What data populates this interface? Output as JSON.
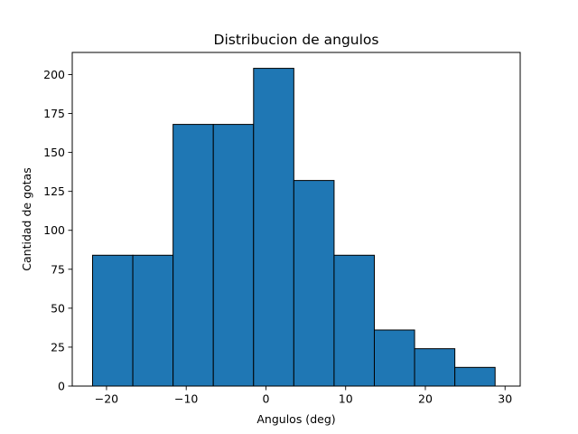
{
  "chart_data": {
    "type": "bar",
    "title": "Distribucion de angulos",
    "xlabel": "Angulos (deg)",
    "ylabel": "Cantidad de gotas",
    "xlim": [
      -24.3,
      31.9
    ],
    "ylim": [
      0,
      214.2
    ],
    "bin_edges": [
      -21.75,
      -16.7,
      -11.65,
      -6.6,
      -1.55,
      3.5,
      8.55,
      13.6,
      18.65,
      23.7,
      28.75
    ],
    "values": [
      84,
      84,
      168,
      168,
      204,
      132,
      84,
      36,
      24,
      12
    ],
    "x_ticks": [
      -20,
      -10,
      0,
      10,
      20,
      30
    ],
    "x_tick_labels": [
      "−20",
      "−10",
      "0",
      "10",
      "20",
      "30"
    ],
    "y_ticks": [
      0,
      25,
      50,
      75,
      100,
      125,
      150,
      175,
      200
    ],
    "y_tick_labels": [
      "0",
      "25",
      "50",
      "75",
      "100",
      "125",
      "150",
      "175",
      "200"
    ],
    "bar_color": "#1f77b4",
    "edge_color": "#000000",
    "grid": false,
    "legend": "none"
  }
}
